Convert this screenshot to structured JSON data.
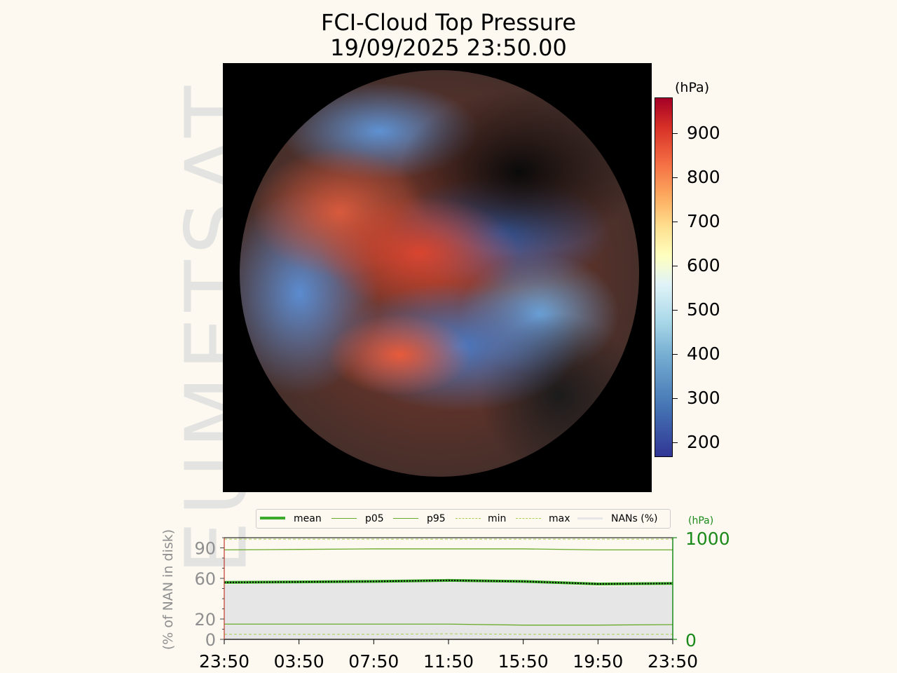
{
  "title_line1": "FCI-Cloud Top Pressure",
  "title_line2": "19/09/2025 23:50.00",
  "watermark": "EUMETSAT",
  "colorbar": {
    "unit": "(hPa)",
    "ticks": [
      "900",
      "800",
      "700",
      "600",
      "500",
      "400",
      "300",
      "200"
    ]
  },
  "legend": {
    "items": [
      "mean",
      "p05",
      "p95",
      "min",
      "max",
      "NANs (%)"
    ]
  },
  "colors": {
    "mean": "#3caa2a",
    "lines": "#6aaa2a",
    "minmax": "#a8d050",
    "nan_fill": "#e6e6e6",
    "right_axis": "#1a8a1a"
  },
  "chart_data": {
    "type": "line",
    "x": [
      "23:50",
      "03:50",
      "07:50",
      "11:50",
      "15:50",
      "19:50",
      "23:50"
    ],
    "left_axis": {
      "label": "(% of NAN in disk)",
      "ticks": [
        "90",
        "60",
        "20",
        "0"
      ],
      "ylim": [
        0,
        100
      ]
    },
    "right_axis": {
      "unit": "(hPa)",
      "ticks": [
        "1000",
        "0"
      ],
      "ylim": [
        0,
        1000
      ]
    },
    "series": [
      {
        "name": "mean",
        "values": [
          560,
          565,
          570,
          580,
          570,
          545,
          550
        ]
      },
      {
        "name": "p05",
        "values": [
          150,
          150,
          150,
          150,
          140,
          140,
          145
        ]
      },
      {
        "name": "p95",
        "values": [
          880,
          885,
          890,
          890,
          890,
          880,
          880
        ]
      },
      {
        "name": "min",
        "values": [
          50,
          50,
          50,
          55,
          50,
          50,
          50
        ]
      },
      {
        "name": "max",
        "values": [
          985,
          985,
          985,
          985,
          985,
          985,
          985
        ]
      },
      {
        "name": "NANs (%)",
        "values": [
          54,
          55,
          57,
          58,
          56,
          52,
          53
        ]
      }
    ]
  }
}
